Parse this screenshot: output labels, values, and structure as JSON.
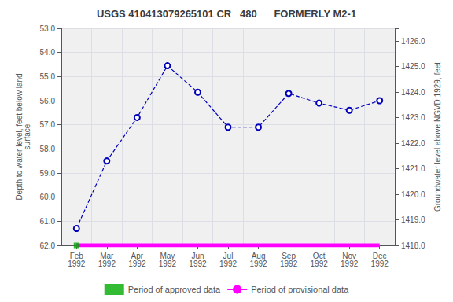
{
  "chart_data": {
    "type": "line",
    "title": "USGS 410413079265101 CR   480      FORMERLY M2-1",
    "ylabel": "Depth to water level, feet below land\nsurface",
    "y2label": "Groundwater level above NGVD 1929, feet",
    "categories": [
      "Feb\n1992",
      "Mar\n1992",
      "Apr\n1992",
      "May\n1992",
      "Jun\n1992",
      "Jul\n1992",
      "Aug\n1992",
      "Sep\n1992",
      "Oct\n1992",
      "Nov\n1992",
      "Dec\n1992"
    ],
    "series": [
      {
        "type": "line",
        "color": "#0000BB",
        "line_style": "dashed",
        "marker": "circle",
        "values": [
          61.3,
          58.5,
          56.7,
          54.55,
          55.65,
          57.1,
          57.1,
          55.7,
          56.1,
          56.4,
          56.0
        ]
      },
      {
        "name": "Period of approved data",
        "type": "scatter",
        "color": "#00AA00",
        "marker": "square",
        "values": [
          62.0,
          null,
          null,
          null,
          null,
          null,
          null,
          null,
          null,
          null,
          null
        ]
      },
      {
        "name": "Period of provisional data",
        "type": "line",
        "color": "#FF00FF",
        "line_style": "solid",
        "values": [
          62.0,
          62.0,
          62.0,
          62.0,
          62.0,
          62.0,
          62.0,
          62.0,
          62.0,
          62.0,
          62.0
        ]
      }
    ],
    "ylim": [
      62.0,
      53.0
    ],
    "yticks": [
      {
        "value": 53,
        "label": "53.0"
      },
      {
        "value": 54,
        "label": "54.0"
      },
      {
        "value": 55,
        "label": "55.0"
      },
      {
        "value": 56,
        "label": "56.0"
      },
      {
        "value": 57,
        "label": "57.0"
      },
      {
        "value": 58,
        "label": "58.0"
      },
      {
        "value": 59,
        "label": "59.0"
      },
      {
        "value": 60,
        "label": "60.0"
      },
      {
        "value": 61,
        "label": "61.0"
      },
      {
        "value": 62,
        "label": "62.0"
      }
    ],
    "y2lim": [
      1418.0,
      1426.5
    ],
    "y2ticks": [
      {
        "value": 1418,
        "label": "1418.0"
      },
      {
        "value": 1419,
        "label": "1419.0"
      },
      {
        "value": 1420,
        "label": "1420.0"
      },
      {
        "value": 1421,
        "label": "1421.0"
      },
      {
        "value": 1422,
        "label": "1422.0"
      },
      {
        "value": 1423,
        "label": "1423.0"
      },
      {
        "value": 1424,
        "label": "1424.0"
      },
      {
        "value": 1425,
        "label": "1425.0"
      },
      {
        "value": 1426,
        "label": "1426.0"
      }
    ],
    "grid": true,
    "legend": "bottom"
  }
}
